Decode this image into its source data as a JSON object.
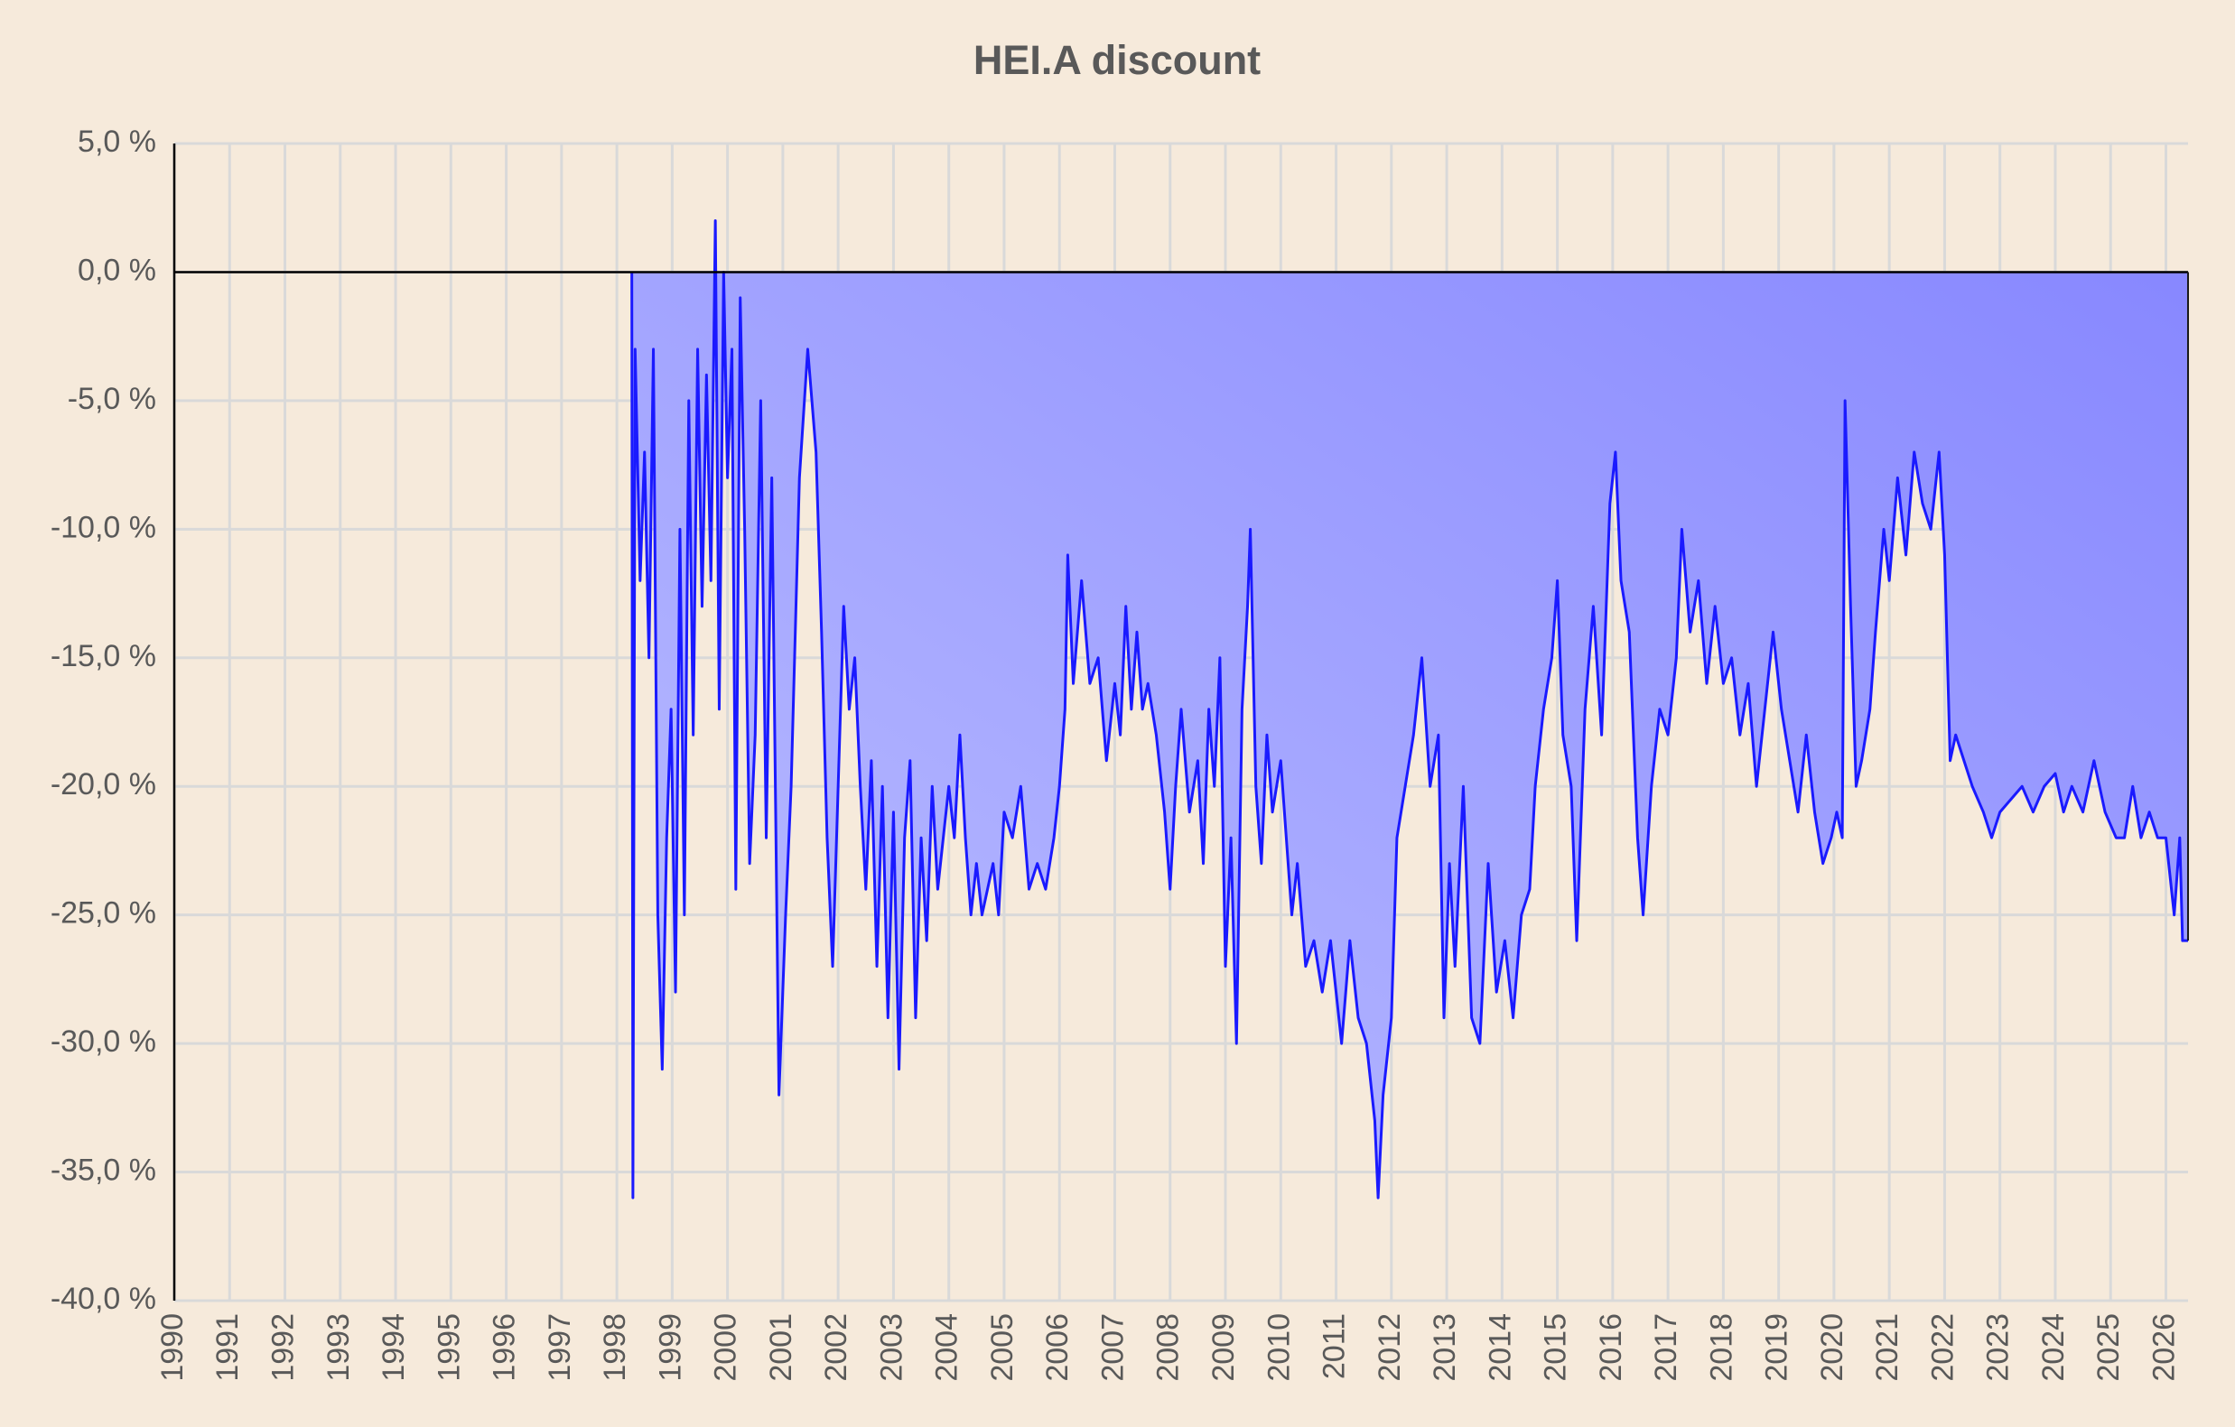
{
  "chart_data": {
    "type": "area",
    "title": "HEI.A discount",
    "color": "#1a1aff",
    "fill_colors": [
      "#bcbfff",
      "#8686ff"
    ],
    "grid": true,
    "xlim": [
      1990,
      2026.4
    ],
    "xticks": [
      1990,
      1991,
      1992,
      1993,
      1994,
      1995,
      1996,
      1997,
      1998,
      1999,
      2000,
      2001,
      2002,
      2003,
      2004,
      2005,
      2006,
      2007,
      2008,
      2009,
      2010,
      2011,
      2012,
      2013,
      2014,
      2015,
      2016,
      2017,
      2018,
      2019,
      2020,
      2021,
      2022,
      2023,
      2024,
      2025,
      2026
    ],
    "ylim": [
      -40,
      5
    ],
    "yticks": [
      {
        "value": 5,
        "label": "5,0 %"
      },
      {
        "value": 0,
        "label": "0,0 %"
      },
      {
        "value": -5,
        "label": "-5,0 %"
      },
      {
        "value": -10,
        "label": "-10,0 %"
      },
      {
        "value": -15,
        "label": "-15,0 %"
      },
      {
        "value": -20,
        "label": "-20,0 %"
      },
      {
        "value": -25,
        "label": "-25,0 %"
      },
      {
        "value": -30,
        "label": "-30,0 %"
      },
      {
        "value": -35,
        "label": "-35,0 %"
      },
      {
        "value": -40,
        "label": "-40,0 %"
      }
    ],
    "x": [
      1998.27,
      1998.29,
      1998.33,
      1998.42,
      1998.5,
      1998.58,
      1998.66,
      1998.74,
      1998.82,
      1998.9,
      1998.98,
      1999.06,
      1999.14,
      1999.22,
      1999.3,
      1999.38,
      1999.46,
      1999.54,
      1999.62,
      1999.7,
      1999.78,
      1999.85,
      1999.93,
      2000.0,
      2000.08,
      2000.15,
      2000.23,
      2000.31,
      2000.4,
      2000.5,
      2000.6,
      2000.7,
      2000.8,
      2000.93,
      2001.05,
      2001.15,
      2001.3,
      2001.45,
      2001.6,
      2001.7,
      2001.8,
      2001.9,
      2002.0,
      2002.1,
      2002.2,
      2002.3,
      2002.4,
      2002.5,
      2002.6,
      2002.7,
      2002.8,
      2002.9,
      2003.0,
      2003.1,
      2003.2,
      2003.3,
      2003.4,
      2003.5,
      2003.6,
      2003.7,
      2003.8,
      2003.9,
      2004.0,
      2004.1,
      2004.2,
      2004.3,
      2004.4,
      2004.5,
      2004.6,
      2004.7,
      2004.8,
      2004.9,
      2005.0,
      2005.15,
      2005.3,
      2005.45,
      2005.6,
      2005.75,
      2005.9,
      2006.0,
      2006.1,
      2006.15,
      2006.25,
      2006.4,
      2006.55,
      2006.7,
      2006.85,
      2007.0,
      2007.1,
      2007.2,
      2007.3,
      2007.4,
      2007.5,
      2007.6,
      2007.75,
      2007.9,
      2008.0,
      2008.1,
      2008.2,
      2008.35,
      2008.5,
      2008.6,
      2008.7,
      2008.8,
      2008.9,
      2009.0,
      2009.1,
      2009.2,
      2009.3,
      2009.4,
      2009.45,
      2009.55,
      2009.65,
      2009.75,
      2009.85,
      2010.0,
      2010.1,
      2010.2,
      2010.3,
      2010.45,
      2010.6,
      2010.75,
      2010.9,
      2011.0,
      2011.1,
      2011.25,
      2011.4,
      2011.55,
      2011.7,
      2011.76,
      2011.85,
      2012.0,
      2012.1,
      2012.25,
      2012.4,
      2012.55,
      2012.7,
      2012.85,
      2012.95,
      2013.05,
      2013.15,
      2013.3,
      2013.45,
      2013.6,
      2013.75,
      2013.9,
      2014.05,
      2014.2,
      2014.35,
      2014.5,
      2014.6,
      2014.75,
      2014.9,
      2015.0,
      2015.1,
      2015.25,
      2015.35,
      2015.5,
      2015.65,
      2015.8,
      2015.95,
      2016.05,
      2016.15,
      2016.3,
      2016.45,
      2016.55,
      2016.7,
      2016.85,
      2017.0,
      2017.15,
      2017.25,
      2017.4,
      2017.55,
      2017.7,
      2017.85,
      2018.0,
      2018.15,
      2018.3,
      2018.45,
      2018.6,
      2018.75,
      2018.9,
      2019.05,
      2019.2,
      2019.35,
      2019.5,
      2019.65,
      2019.8,
      2019.95,
      2020.05,
      2020.15,
      2020.2,
      2020.3,
      2020.4,
      2020.5,
      2020.65,
      2020.75,
      2020.9,
      2021.0,
      2021.15,
      2021.3,
      2021.45,
      2021.6,
      2021.75,
      2021.9,
      2022.0,
      2022.1,
      2022.2,
      2022.35,
      2022.5,
      2022.7,
      2022.85,
      2023.0,
      2023.2,
      2023.4,
      2023.6,
      2023.8,
      2024.0,
      2024.15,
      2024.3,
      2024.5,
      2024.7,
      2024.9,
      2025.1,
      2025.25,
      2025.4,
      2025.55,
      2025.7,
      2025.85,
      2026.0,
      2026.15,
      2026.25,
      2026.3,
      2026.4
    ],
    "values": [
      0,
      -36,
      -3,
      -12,
      -7,
      -15,
      -3,
      -25,
      -31,
      -22,
      -17,
      -28,
      -10,
      -25,
      -5,
      -18,
      -3,
      -13,
      -4,
      -12,
      2,
      -17,
      0,
      -8,
      -3,
      -24,
      -1,
      -10,
      -23,
      -18,
      -5,
      -22,
      -8,
      -32,
      -25,
      -20,
      -8,
      -3,
      -7,
      -14,
      -22,
      -27,
      -20,
      -13,
      -17,
      -15,
      -20,
      -24,
      -19,
      -27,
      -20,
      -29,
      -21,
      -31,
      -22,
      -19,
      -29,
      -22,
      -26,
      -20,
      -24,
      -22,
      -20,
      -22,
      -18,
      -22,
      -25,
      -23,
      -25,
      -24,
      -23,
      -25,
      -21,
      -22,
      -20,
      -24,
      -23,
      -24,
      -22,
      -20,
      -17,
      -11,
      -16,
      -12,
      -16,
      -15,
      -19,
      -16,
      -18,
      -13,
      -17,
      -14,
      -17,
      -16,
      -18,
      -21,
      -24,
      -20,
      -17,
      -21,
      -19,
      -23,
      -17,
      -20,
      -15,
      -27,
      -22,
      -30,
      -17,
      -13,
      -10,
      -20,
      -23,
      -18,
      -21,
      -19,
      -22,
      -25,
      -23,
      -27,
      -26,
      -28,
      -26,
      -28,
      -30,
      -26,
      -29,
      -30,
      -33,
      -36,
      -32,
      -29,
      -22,
      -20,
      -18,
      -15,
      -20,
      -18,
      -29,
      -23,
      -27,
      -20,
      -29,
      -30,
      -23,
      -28,
      -26,
      -29,
      -25,
      -24,
      -20,
      -17,
      -15,
      -12,
      -18,
      -20,
      -26,
      -17,
      -13,
      -18,
      -9,
      -7,
      -12,
      -14,
      -22,
      -25,
      -20,
      -17,
      -18,
      -15,
      -10,
      -14,
      -12,
      -16,
      -13,
      -16,
      -15,
      -18,
      -16,
      -20,
      -17,
      -14,
      -17,
      -19,
      -21,
      -18,
      -21,
      -23,
      -22,
      -21,
      -22,
      -5,
      -13,
      -20,
      -19,
      -17,
      -14,
      -10,
      -12,
      -8,
      -11,
      -7,
      -9,
      -10,
      -7,
      -11,
      -19,
      -18,
      -19,
      -20,
      -21,
      -22,
      -21,
      -20.5,
      -20,
      -21,
      -20,
      -19.5,
      -21,
      -20,
      -21,
      -19,
      -21,
      -22,
      -22,
      -20,
      -22,
      -21,
      -22,
      -22,
      -25,
      -22,
      -26,
      -26
    ]
  }
}
